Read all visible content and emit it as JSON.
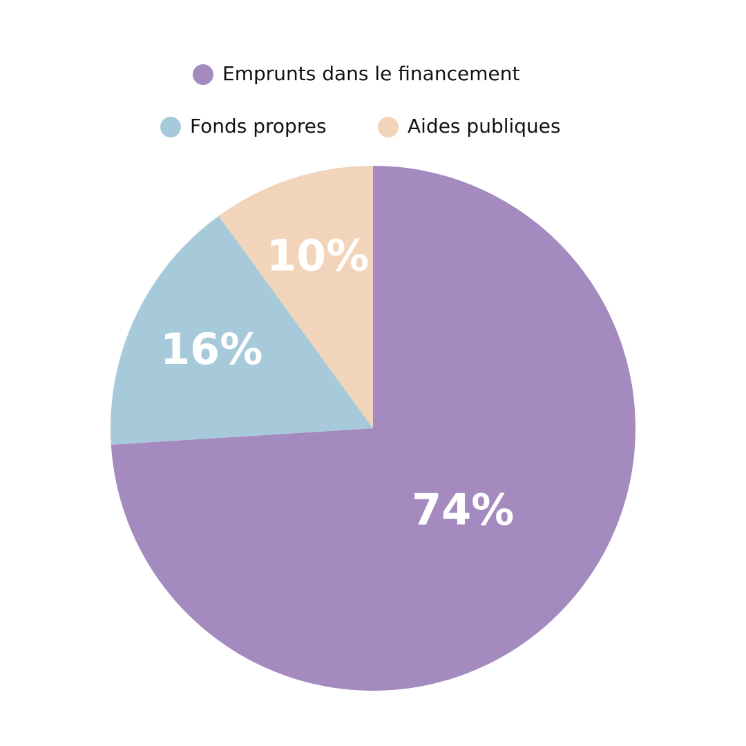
{
  "chart_data": {
    "type": "pie",
    "categories": [
      "Emprunts dans le financement",
      "Fonds propres",
      "Aides publiques"
    ],
    "values": [
      74,
      16,
      10
    ],
    "value_labels": [
      "74%",
      "16%",
      "10%"
    ],
    "colors": [
      "#a48abf",
      "#a7cadb",
      "#f2d4ba"
    ],
    "start_angle": 0,
    "direction": "clockwise"
  }
}
